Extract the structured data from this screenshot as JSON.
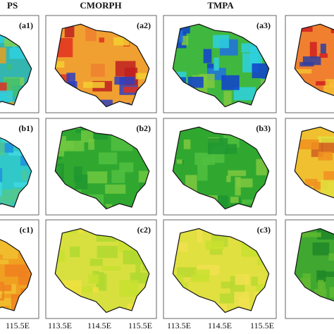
{
  "headers": [
    "PS",
    "CMORPH",
    "TMPA"
  ],
  "panels": [
    [
      "(a1)",
      "(a2)",
      "(a3)"
    ],
    [
      "(b1)",
      "(b2)",
      "(b3)"
    ],
    [
      "(c1)",
      "(c2)",
      "(c3)"
    ]
  ],
  "x_axis_labels": [
    "115.5E",
    "113.5E",
    "114.5E",
    "115.5E",
    "113.5E",
    "114.5E",
    "115.5E"
  ]
}
